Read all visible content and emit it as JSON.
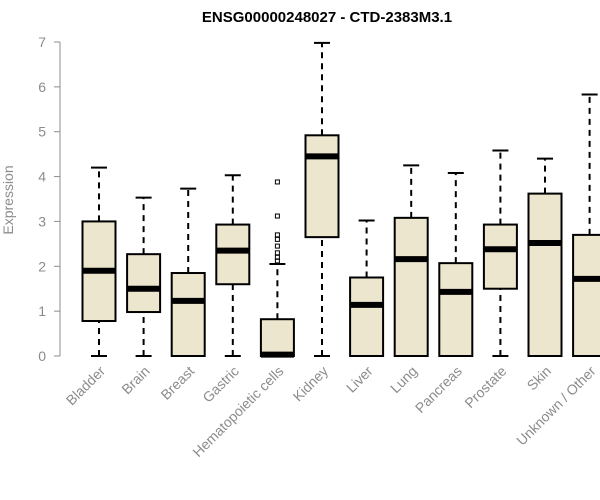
{
  "chart_data": {
    "type": "boxplot",
    "title": "ENSG00000248027 - CTD-2383M3.1",
    "ylabel": "Expression",
    "xlabel": "",
    "ylim": [
      0,
      7
    ],
    "yticks": [
      0,
      1,
      2,
      3,
      4,
      5,
      6,
      7
    ],
    "colors": {
      "box_fill": "#ede6cf",
      "stroke": "#000000",
      "axis": "#8c8c8c"
    },
    "categories": [
      "Bladder",
      "Brain",
      "Breast",
      "Gastric",
      "Hematopoietic cells",
      "Kidney",
      "Liver",
      "Lung",
      "Pancreas",
      "Prostate",
      "Skin",
      "Unknown / Other"
    ],
    "boxes": [
      {
        "min": 0,
        "q1": 0.78,
        "median": 1.9,
        "q3": 3.0,
        "max": 4.2,
        "outliers": []
      },
      {
        "min": 0,
        "q1": 0.98,
        "median": 1.5,
        "q3": 2.27,
        "max": 3.53,
        "outliers": []
      },
      {
        "min": 0,
        "q1": 0,
        "median": 1.23,
        "q3": 1.85,
        "max": 3.73,
        "outliers": []
      },
      {
        "min": 0,
        "q1": 1.6,
        "median": 2.35,
        "q3": 2.93,
        "max": 4.03,
        "outliers": []
      },
      {
        "min": 0,
        "q1": 0,
        "median": 0.03,
        "q3": 0.82,
        "max": 2.05,
        "outliers": [
          2.12,
          2.2,
          2.3,
          2.45,
          2.6,
          2.7,
          3.12,
          3.88
        ]
      },
      {
        "min": 0,
        "q1": 2.65,
        "median": 4.45,
        "q3": 4.92,
        "max": 6.98,
        "outliers": []
      },
      {
        "min": 0,
        "q1": 0,
        "median": 1.14,
        "q3": 1.75,
        "max": 3.02,
        "outliers": []
      },
      {
        "min": 0,
        "q1": 0,
        "median": 2.16,
        "q3": 3.08,
        "max": 4.25,
        "outliers": []
      },
      {
        "min": 0,
        "q1": 0,
        "median": 1.43,
        "q3": 2.07,
        "max": 4.08,
        "outliers": []
      },
      {
        "min": 0,
        "q1": 1.5,
        "median": 2.38,
        "q3": 2.93,
        "max": 4.58,
        "outliers": []
      },
      {
        "min": 0,
        "q1": 0,
        "median": 2.52,
        "q3": 3.62,
        "max": 4.4,
        "outliers": []
      },
      {
        "min": 0,
        "q1": 0,
        "median": 1.72,
        "q3": 2.7,
        "max": 5.83,
        "outliers": []
      }
    ]
  }
}
